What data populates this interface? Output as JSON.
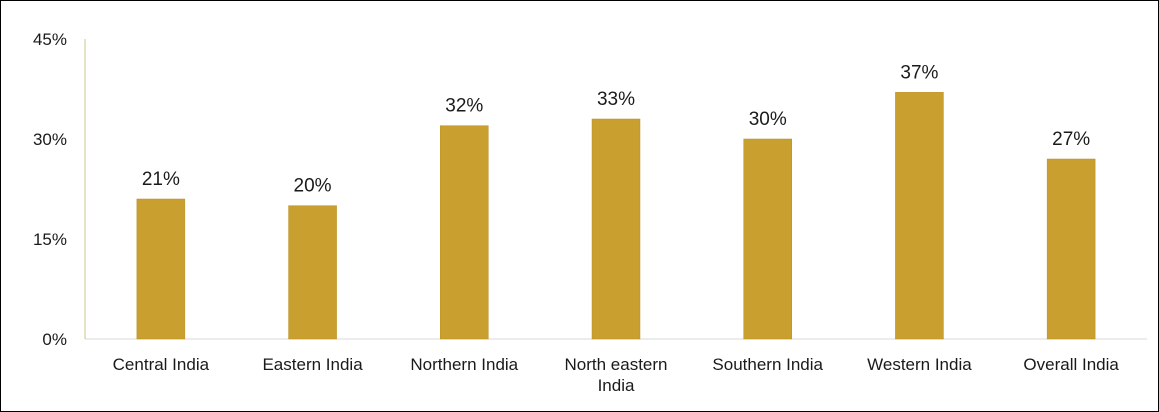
{
  "chart_data": {
    "type": "bar",
    "categories": [
      [
        "Central India"
      ],
      [
        "Eastern India"
      ],
      [
        "Northern India"
      ],
      [
        "North eastern",
        "India"
      ],
      [
        "Southern India"
      ],
      [
        "Western India"
      ],
      [
        "Overall India"
      ]
    ],
    "values": [
      21,
      20,
      32,
      33,
      30,
      37,
      27
    ],
    "data_labels": [
      "21%",
      "20%",
      "32%",
      "33%",
      "30%",
      "37%",
      "27%"
    ],
    "y_ticks": [
      0,
      15,
      30,
      45
    ],
    "y_tick_labels": [
      "0%",
      "15%",
      "30%",
      "45%"
    ],
    "ylim": [
      0,
      45
    ],
    "grid": false,
    "legend": "none",
    "colors": {
      "bar": "#c9a030",
      "bar_edge": "#b88f22",
      "axis": "#c9c98a",
      "baseline": "#d9d9d9"
    }
  }
}
